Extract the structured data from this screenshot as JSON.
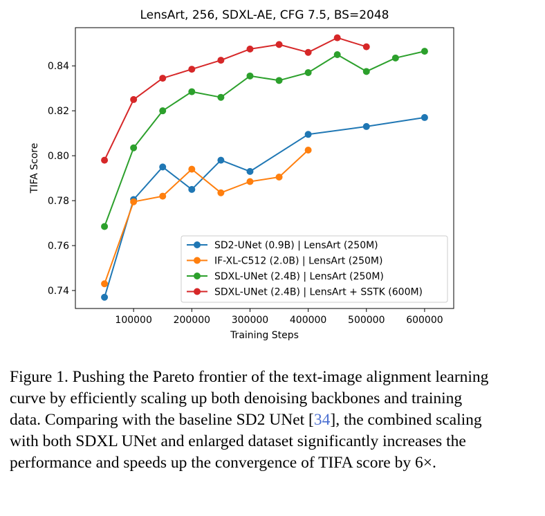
{
  "chart_data": {
    "type": "line",
    "title": "LensArt, 256, SDXL-AE, CFG 7.5, BS=2048",
    "xlabel": "Training Steps",
    "ylabel": "TIFA Score",
    "xlim": [
      0,
      650000
    ],
    "ylim": [
      0.732,
      0.857
    ],
    "xticks": [
      100000,
      200000,
      300000,
      400000,
      500000,
      600000
    ],
    "xtick_labels": [
      "100000",
      "200000",
      "300000",
      "400000",
      "500000",
      "600000"
    ],
    "yticks": [
      0.74,
      0.76,
      0.78,
      0.8,
      0.82,
      0.84
    ],
    "ytick_labels": [
      "0.74",
      "0.76",
      "0.78",
      "0.80",
      "0.82",
      "0.84"
    ],
    "grid": false,
    "legend_position": "bottom-right",
    "series": [
      {
        "name": "SD2-UNet (0.9B) | LensArt (250M)",
        "color": "#1f77b4",
        "x": [
          50000,
          100000,
          150000,
          200000,
          250000,
          300000,
          400000,
          500000,
          600000
        ],
        "y": [
          0.737,
          0.7805,
          0.795,
          0.785,
          0.798,
          0.793,
          0.8095,
          0.813,
          0.817
        ]
      },
      {
        "name": "IF-XL-C512 (2.0B) | LensArt (250M)",
        "color": "#ff7f0e",
        "x": [
          50000,
          100000,
          150000,
          200000,
          250000,
          300000,
          350000,
          400000
        ],
        "y": [
          0.743,
          0.7795,
          0.782,
          0.794,
          0.7835,
          0.7885,
          0.7905,
          0.8025
        ]
      },
      {
        "name": "SDXL-UNet (2.4B) | LensArt (250M)",
        "color": "#2ca02c",
        "x": [
          50000,
          100000,
          150000,
          200000,
          250000,
          300000,
          350000,
          400000,
          450000,
          500000,
          550000,
          600000
        ],
        "y": [
          0.7685,
          0.8035,
          0.82,
          0.8285,
          0.826,
          0.8355,
          0.8335,
          0.837,
          0.845,
          0.8375,
          0.8435,
          0.8465
        ]
      },
      {
        "name": "SDXL-UNet (2.4B) | LensArt + SSTK (600M)",
        "color": "#d62728",
        "x": [
          50000,
          100000,
          150000,
          200000,
          250000,
          300000,
          350000,
          400000,
          450000,
          500000
        ],
        "y": [
          0.798,
          0.825,
          0.8345,
          0.8385,
          0.8425,
          0.8475,
          0.8495,
          0.846,
          0.8525,
          0.8485
        ]
      }
    ]
  },
  "caption": {
    "text_before": "Figure 1. Pushing the Pareto frontier of the text-image alignment learning curve by efficiently scaling up both denoising backbones and training data. Comparing with the baseline SD2 UNet [",
    "citation": "34",
    "text_after": "], the combined scaling with both SDXL UNet and enlarged dataset significantly increases the performance and speeds up the convergence of TIFA score by 6×."
  }
}
